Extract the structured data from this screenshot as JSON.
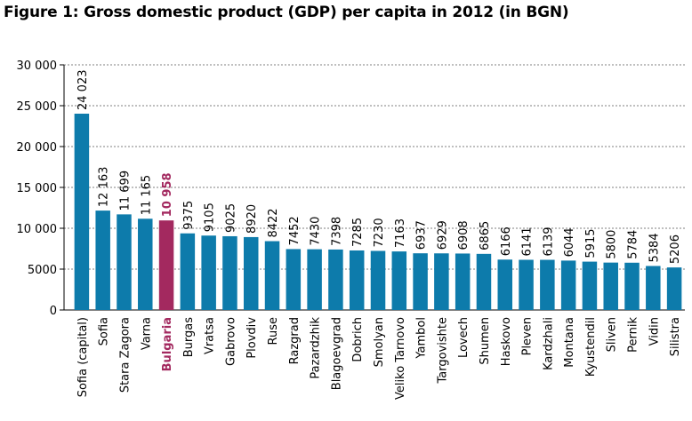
{
  "title": "Figure 1: Gross domestic product (GDP) per capita in 2012 (in BGN)",
  "chart_data": {
    "type": "bar",
    "title": "Figure 1: Gross domestic product (GDP) per capita in 2012 (in BGN)",
    "xlabel": "",
    "ylabel": "",
    "ylim": [
      0,
      30000
    ],
    "yticks": [
      0,
      5000,
      10000,
      15000,
      20000,
      25000,
      30000
    ],
    "ytick_labels": [
      "0",
      "5000",
      "10 000",
      "15 000",
      "20 000",
      "25 000",
      "30 000"
    ],
    "grid": true,
    "categories": [
      "Sofia (capital)",
      "Sofia",
      "Stara Zagora",
      "Varna",
      "Bulgaria",
      "Burgas",
      "Vratsa",
      "Gabrovo",
      "Plovdiv",
      "Ruse",
      "Razgrad",
      "Pazardzhik",
      "Blagoevgrad",
      "Dobrich",
      "Smolyan",
      "Veliko Tarnovo",
      "Yambol",
      "Targovishte",
      "Lovech",
      "Shumen",
      "Haskovo",
      "Pleven",
      "Kardzhali",
      "Montana",
      "Kyustendil",
      "Sliven",
      "Pernik",
      "Vidin",
      "Silistra"
    ],
    "values": [
      24023,
      12163,
      11699,
      11165,
      10958,
      9375,
      9105,
      9025,
      8920,
      8422,
      7452,
      7430,
      7398,
      7285,
      7230,
      7163,
      6937,
      6929,
      6908,
      6865,
      6166,
      6141,
      6139,
      6044,
      5915,
      5800,
      5784,
      5384,
      5206
    ],
    "value_labels": [
      "24 023",
      "12 163",
      "11 699",
      "11 165",
      "10 958",
      "9375",
      "9105",
      "9025",
      "8920",
      "8422",
      "7452",
      "7430",
      "7398",
      "7285",
      "7230",
      "7163",
      "6937",
      "6929",
      "6908",
      "6865",
      "6166",
      "6141",
      "6139",
      "6044",
      "5915",
      "5800",
      "5784",
      "5384",
      "5206"
    ],
    "highlight": "Bulgaria",
    "colors": {
      "bar": "#0d7bab",
      "highlight": "#a3295f",
      "grid": "#555555",
      "axis": "#000000"
    }
  }
}
